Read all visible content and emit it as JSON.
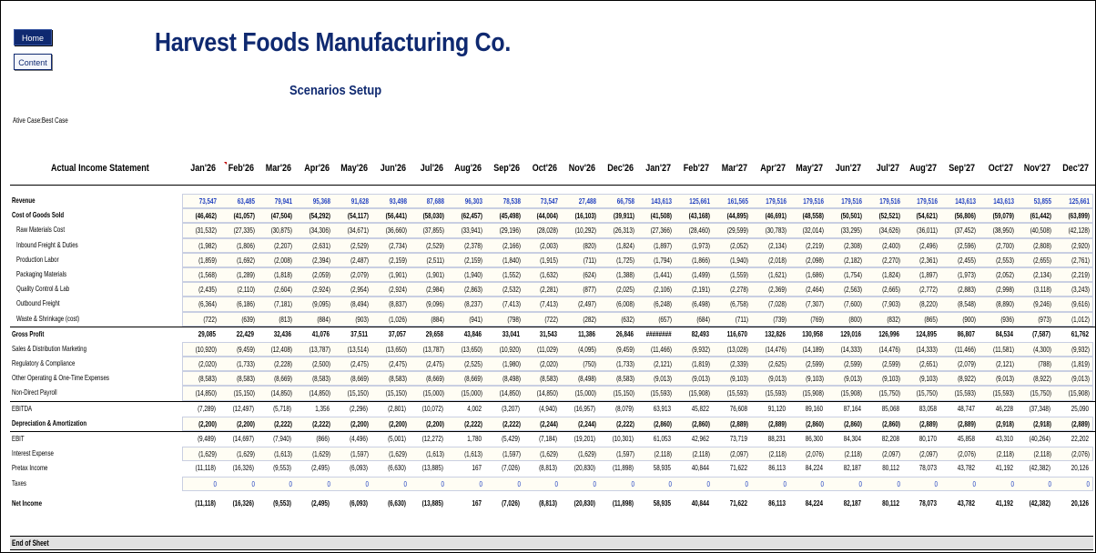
{
  "nav": {
    "home_label": "Home",
    "content_label": "Content"
  },
  "header": {
    "company": "Harvest Foods Manufacturing Co.",
    "subtitle": "Scenarios Setup",
    "active_case": "Ative Case:Best Case"
  },
  "table": {
    "title": "Actual Income Statement",
    "months": [
      "Jan'26",
      "Feb'26",
      "Mar'26",
      "Apr'26",
      "May'26",
      "Jun'26",
      "Jul'26",
      "Aug'26",
      "Sep'26",
      "Oct'26",
      "Nov'26",
      "Dec'26",
      "Jan'27",
      "Feb'27",
      "Mar'27",
      "Apr'27",
      "May'27",
      "Jun'27",
      "Jul'27",
      "Aug'27",
      "Sep'27",
      "Oct'27",
      "Nov'27",
      "Dec'27"
    ],
    "rows": [
      {
        "label": "Revenue",
        "style": "bold",
        "box": true,
        "blue": true,
        "values": [
          "73,547",
          "63,485",
          "79,941",
          "95,368",
          "91,628",
          "93,498",
          "87,688",
          "96,303",
          "78,538",
          "73,547",
          "27,488",
          "66,758",
          "143,613",
          "125,661",
          "161,565",
          "179,516",
          "179,516",
          "179,516",
          "179,516",
          "179,516",
          "143,613",
          "143,613",
          "53,855",
          "125,661"
        ]
      },
      {
        "label": "Cost of Goods Sold",
        "style": "bold",
        "box": true,
        "values": [
          "(46,462)",
          "(41,057)",
          "(47,504)",
          "(54,292)",
          "(54,117)",
          "(56,441)",
          "(58,030)",
          "(62,457)",
          "(45,498)",
          "(44,004)",
          "(16,103)",
          "(39,911)",
          "(41,508)",
          "(43,168)",
          "(44,895)",
          "(46,691)",
          "(48,558)",
          "(50,501)",
          "(52,521)",
          "(54,621)",
          "(56,806)",
          "(59,079)",
          "(61,442)",
          "(63,899)"
        ]
      },
      {
        "label": "Raw Materials Cost",
        "style": "indent",
        "box": true,
        "values": [
          "(31,532)",
          "(27,335)",
          "(30,875)",
          "(34,306)",
          "(34,671)",
          "(36,660)",
          "(37,855)",
          "(33,941)",
          "(29,196)",
          "(28,028)",
          "(10,292)",
          "(26,313)",
          "(27,366)",
          "(28,460)",
          "(29,599)",
          "(30,783)",
          "(32,014)",
          "(33,295)",
          "(34,626)",
          "(36,011)",
          "(37,452)",
          "(38,950)",
          "(40,508)",
          "(42,128)"
        ]
      },
      {
        "label": "Inbound Freight & Duties",
        "style": "indent",
        "box": true,
        "values": [
          "(1,982)",
          "(1,806)",
          "(2,207)",
          "(2,631)",
          "(2,529)",
          "(2,734)",
          "(2,529)",
          "(2,378)",
          "(2,166)",
          "(2,003)",
          "(820)",
          "(1,824)",
          "(1,897)",
          "(1,973)",
          "(2,052)",
          "(2,134)",
          "(2,219)",
          "(2,308)",
          "(2,400)",
          "(2,496)",
          "(2,596)",
          "(2,700)",
          "(2,808)",
          "(2,920)"
        ]
      },
      {
        "label": "Production Labor",
        "style": "indent",
        "box": true,
        "values": [
          "(1,859)",
          "(1,692)",
          "(2,008)",
          "(2,394)",
          "(2,487)",
          "(2,159)",
          "(2,511)",
          "(2,159)",
          "(1,840)",
          "(1,915)",
          "(711)",
          "(1,725)",
          "(1,794)",
          "(1,866)",
          "(1,940)",
          "(2,018)",
          "(2,098)",
          "(2,182)",
          "(2,270)",
          "(2,361)",
          "(2,455)",
          "(2,553)",
          "(2,655)",
          "(2,761)"
        ]
      },
      {
        "label": "Packaging Materials",
        "style": "indent",
        "box": true,
        "values": [
          "(1,568)",
          "(1,289)",
          "(1,818)",
          "(2,059)",
          "(2,079)",
          "(1,901)",
          "(1,901)",
          "(1,940)",
          "(1,552)",
          "(1,632)",
          "(624)",
          "(1,388)",
          "(1,441)",
          "(1,499)",
          "(1,559)",
          "(1,621)",
          "(1,686)",
          "(1,754)",
          "(1,824)",
          "(1,897)",
          "(1,973)",
          "(2,052)",
          "(2,134)",
          "(2,219)"
        ]
      },
      {
        "label": "Quality Control & Lab",
        "style": "indent",
        "box": true,
        "values": [
          "(2,435)",
          "(2,110)",
          "(2,604)",
          "(2,924)",
          "(2,954)",
          "(2,924)",
          "(2,984)",
          "(2,863)",
          "(2,532)",
          "(2,281)",
          "(877)",
          "(2,025)",
          "(2,106)",
          "(2,191)",
          "(2,278)",
          "(2,369)",
          "(2,464)",
          "(2,563)",
          "(2,665)",
          "(2,772)",
          "(2,883)",
          "(2,998)",
          "(3,118)",
          "(3,243)"
        ]
      },
      {
        "label": "Outbound Freight",
        "style": "indent",
        "box": true,
        "values": [
          "(6,364)",
          "(6,186)",
          "(7,181)",
          "(9,095)",
          "(8,494)",
          "(8,837)",
          "(9,096)",
          "(8,237)",
          "(7,413)",
          "(7,413)",
          "(2,497)",
          "(6,008)",
          "(6,248)",
          "(6,498)",
          "(6,758)",
          "(7,028)",
          "(7,307)",
          "(7,600)",
          "(7,903)",
          "(8,220)",
          "(8,548)",
          "(8,890)",
          "(9,246)",
          "(9,616)"
        ]
      },
      {
        "label": "Waste & Shrinkage (cost)",
        "style": "indent",
        "box": true,
        "values": [
          "(722)",
          "(639)",
          "(813)",
          "(884)",
          "(903)",
          "(1,026)",
          "(884)",
          "(941)",
          "(798)",
          "(722)",
          "(282)",
          "(632)",
          "(657)",
          "(684)",
          "(711)",
          "(739)",
          "(769)",
          "(800)",
          "(832)",
          "(865)",
          "(900)",
          "(936)",
          "(973)",
          "(1,012)"
        ]
      },
      {
        "label": "Gross Profit",
        "style": "bold",
        "box": false,
        "topline": true,
        "values": [
          "29,085",
          "22,429",
          "32,436",
          "41,076",
          "37,511",
          "37,057",
          "29,658",
          "43,846",
          "33,041",
          "31,543",
          "11,386",
          "26,846",
          "########",
          "82,493",
          "116,670",
          "132,826",
          "130,958",
          "129,016",
          "126,996",
          "124,895",
          "86,807",
          "84,534",
          "(7,587)",
          "61,762"
        ]
      },
      {
        "label": "Sales & Distribution Marketing",
        "style": "",
        "box": true,
        "values": [
          "(10,920)",
          "(9,459)",
          "(12,408)",
          "(13,787)",
          "(13,514)",
          "(13,650)",
          "(13,787)",
          "(13,650)",
          "(10,920)",
          "(11,029)",
          "(4,095)",
          "(9,459)",
          "(11,466)",
          "(9,932)",
          "(13,028)",
          "(14,476)",
          "(14,189)",
          "(14,333)",
          "(14,476)",
          "(14,333)",
          "(11,466)",
          "(11,581)",
          "(4,300)",
          "(9,932)"
        ]
      },
      {
        "label": "Regulatory & Compliance",
        "style": "",
        "box": true,
        "values": [
          "(2,020)",
          "(1,733)",
          "(2,228)",
          "(2,500)",
          "(2,475)",
          "(2,475)",
          "(2,475)",
          "(2,525)",
          "(1,980)",
          "(2,020)",
          "(750)",
          "(1,733)",
          "(2,121)",
          "(1,819)",
          "(2,339)",
          "(2,625)",
          "(2,599)",
          "(2,599)",
          "(2,599)",
          "(2,651)",
          "(2,079)",
          "(2,121)",
          "(788)",
          "(1,819)"
        ]
      },
      {
        "label": "Other Operating & One-Time Expenses",
        "style": "",
        "box": true,
        "values": [
          "(8,583)",
          "(8,583)",
          "(8,669)",
          "(8,583)",
          "(8,669)",
          "(8,583)",
          "(8,669)",
          "(8,669)",
          "(8,498)",
          "(8,583)",
          "(8,498)",
          "(8,583)",
          "(9,013)",
          "(9,013)",
          "(9,103)",
          "(9,013)",
          "(9,103)",
          "(9,013)",
          "(9,103)",
          "(9,103)",
          "(8,922)",
          "(9,013)",
          "(8,922)",
          "(9,013)"
        ]
      },
      {
        "label": "Non-Direct Payroll",
        "style": "",
        "box": true,
        "values": [
          "(14,850)",
          "(15,150)",
          "(14,850)",
          "(14,850)",
          "(15,150)",
          "(15,150)",
          "(15,000)",
          "(15,000)",
          "(14,850)",
          "(14,850)",
          "(15,000)",
          "(15,150)",
          "(15,593)",
          "(15,908)",
          "(15,593)",
          "(15,593)",
          "(15,908)",
          "(15,908)",
          "(15,750)",
          "(15,750)",
          "(15,593)",
          "(15,593)",
          "(15,750)",
          "(15,908)"
        ]
      },
      {
        "label": "EBITDA",
        "style": "",
        "box": false,
        "topline": true,
        "values": [
          "(7,289)",
          "(12,497)",
          "(5,718)",
          "1,356",
          "(2,296)",
          "(2,801)",
          "(10,072)",
          "4,002",
          "(3,207)",
          "(4,940)",
          "(16,957)",
          "(8,079)",
          "63,913",
          "45,822",
          "76,608",
          "91,120",
          "89,160",
          "87,164",
          "85,068",
          "83,058",
          "48,747",
          "46,228",
          "(37,348)",
          "25,090"
        ]
      },
      {
        "label": "Depreciation & Amortization",
        "style": "bold",
        "box": true,
        "values": [
          "(2,200)",
          "(2,200)",
          "(2,222)",
          "(2,222)",
          "(2,200)",
          "(2,200)",
          "(2,200)",
          "(2,222)",
          "(2,222)",
          "(2,244)",
          "(2,244)",
          "(2,222)",
          "(2,860)",
          "(2,860)",
          "(2,889)",
          "(2,889)",
          "(2,860)",
          "(2,860)",
          "(2,860)",
          "(2,889)",
          "(2,889)",
          "(2,918)",
          "(2,918)",
          "(2,889)"
        ]
      },
      {
        "label": "EBIT",
        "style": "",
        "box": false,
        "topline": true,
        "values": [
          "(9,489)",
          "(14,697)",
          "(7,940)",
          "(866)",
          "(4,496)",
          "(5,001)",
          "(12,272)",
          "1,780",
          "(5,429)",
          "(7,184)",
          "(19,201)",
          "(10,301)",
          "61,053",
          "42,962",
          "73,719",
          "88,231",
          "86,300",
          "84,304",
          "82,208",
          "80,170",
          "45,858",
          "43,310",
          "(40,264)",
          "22,202"
        ]
      },
      {
        "label": "Interest Expense",
        "style": "",
        "box": true,
        "values": [
          "(1,629)",
          "(1,629)",
          "(1,613)",
          "(1,629)",
          "(1,597)",
          "(1,629)",
          "(1,613)",
          "(1,613)",
          "(1,597)",
          "(1,629)",
          "(1,629)",
          "(1,597)",
          "(2,118)",
          "(2,118)",
          "(2,097)",
          "(2,118)",
          "(2,076)",
          "(2,118)",
          "(2,097)",
          "(2,097)",
          "(2,076)",
          "(2,118)",
          "(2,118)",
          "(2,076)"
        ]
      },
      {
        "label": "Pretax Income",
        "style": "",
        "box": false,
        "values": [
          "(11,118)",
          "(16,326)",
          "(9,553)",
          "(2,495)",
          "(6,093)",
          "(6,630)",
          "(13,885)",
          "167",
          "(7,026)",
          "(8,813)",
          "(20,830)",
          "(11,898)",
          "58,935",
          "40,844",
          "71,622",
          "86,113",
          "84,224",
          "82,187",
          "80,112",
          "78,073",
          "43,782",
          "41,192",
          "(42,382)",
          "20,126"
        ]
      },
      {
        "label": "Taxes",
        "style": "",
        "box": true,
        "blue": true,
        "values": [
          "0",
          "0",
          "0",
          "0",
          "0",
          "0",
          "0",
          "0",
          "0",
          "0",
          "0",
          "0",
          "0",
          "0",
          "0",
          "0",
          "0",
          "0",
          "0",
          "0",
          "0",
          "0",
          "0",
          "0"
        ]
      },
      {
        "label": "Net Income",
        "style": "bold",
        "box": false,
        "gap": true,
        "values": [
          "(11,118)",
          "(16,326)",
          "(9,553)",
          "(2,495)",
          "(6,093)",
          "(6,630)",
          "(13,885)",
          "167",
          "(7,026)",
          "(8,813)",
          "(20,830)",
          "(11,898)",
          "58,935",
          "40,844",
          "71,622",
          "86,113",
          "84,224",
          "82,187",
          "80,112",
          "78,073",
          "43,782",
          "41,192",
          "(42,382)",
          "20,126"
        ]
      }
    ],
    "end_label": "End of Sheet"
  }
}
